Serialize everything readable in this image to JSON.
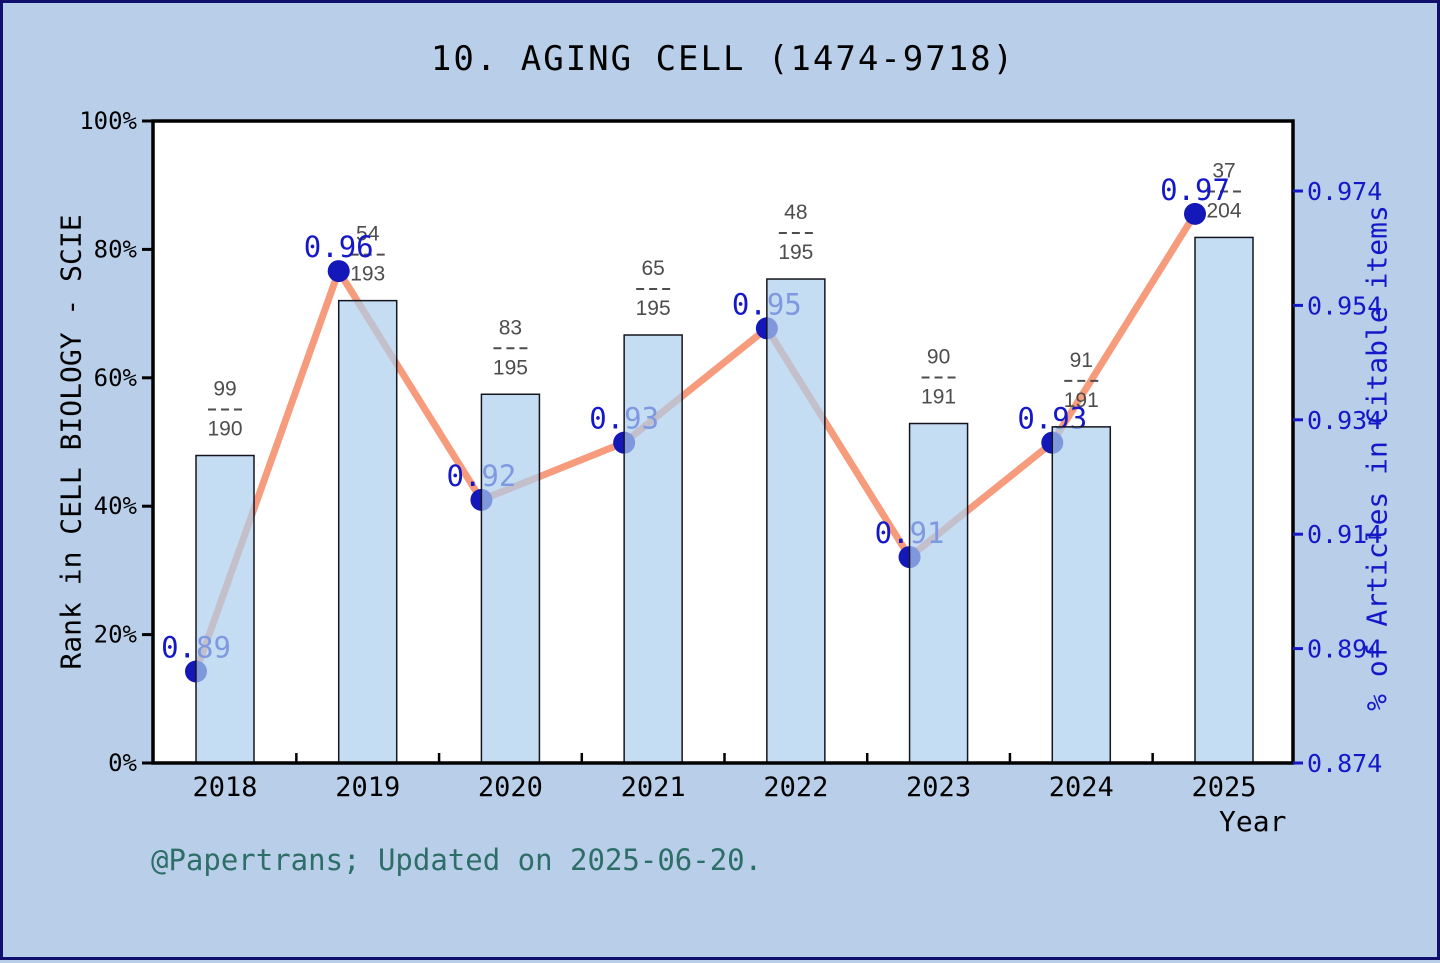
{
  "page": {
    "title": "10. AGING CELL (1474-9718)",
    "footer": "@Papertrans; Updated on 2025-06-20.",
    "background": "#b9cfe9",
    "border_color": "#10106e"
  },
  "chart_data": {
    "type": "bar",
    "subtype": "bar+line dual-axis",
    "title": "10. AGING CELL (1474-9718)",
    "xlabel": "Year",
    "categories": [
      "2018",
      "2019",
      "2020",
      "2021",
      "2022",
      "2023",
      "2024",
      "2025"
    ],
    "left_axis": {
      "label": "Rank in CELL BIOLOGY - SCIE",
      "ticks": [
        "0%",
        "20%",
        "40%",
        "60%",
        "80%",
        "100%"
      ],
      "range": [
        0,
        1
      ],
      "color": "#000000"
    },
    "right_axis": {
      "label": "% of Articles in Citable items",
      "ticks": [
        "0.874",
        "0.894",
        "0.914",
        "0.934",
        "0.954",
        "0.974"
      ],
      "tick_values": [
        0.874,
        0.894,
        0.914,
        0.934,
        0.954,
        0.974
      ],
      "range": [
        0.874,
        0.9863
      ],
      "color": "#1418c8"
    },
    "bars": {
      "name": "Rank in CELL BIOLOGY - SCIE (bar height = 1 - rank/total)",
      "rank_fractions": [
        {
          "numerator": "99",
          "denominator": "190"
        },
        {
          "numerator": "54",
          "denominator": "193"
        },
        {
          "numerator": "83",
          "denominator": "195"
        },
        {
          "numerator": "65",
          "denominator": "195"
        },
        {
          "numerator": "48",
          "denominator": "195"
        },
        {
          "numerator": "90",
          "denominator": "191"
        },
        {
          "numerator": "91",
          "denominator": "191"
        },
        {
          "numerator": "37",
          "denominator": "204"
        }
      ]
    },
    "line": {
      "name": "% of Articles in Citable items",
      "values": [
        0.89,
        0.96,
        0.92,
        0.93,
        0.95,
        0.91,
        0.93,
        0.97
      ],
      "point_labels": [
        "0.89",
        "0.96",
        "0.92",
        "0.93",
        "0.95",
        "0.91",
        "0.93",
        "0.97"
      ]
    },
    "colors": {
      "plot_background": "#ffffff",
      "axis_frame": "#000000",
      "bar_fill_rgba": "rgba(172,206,236,0.70)",
      "bar_border": "#15151f",
      "line_stroke": "#f79b7d",
      "marker_fill": "#1418b8",
      "point_label": "#1418c8",
      "fraction_label": "#4d4d4d",
      "year_label": "#000000",
      "footer": "#2d6e68"
    },
    "legend_position": "none",
    "grid": false
  }
}
